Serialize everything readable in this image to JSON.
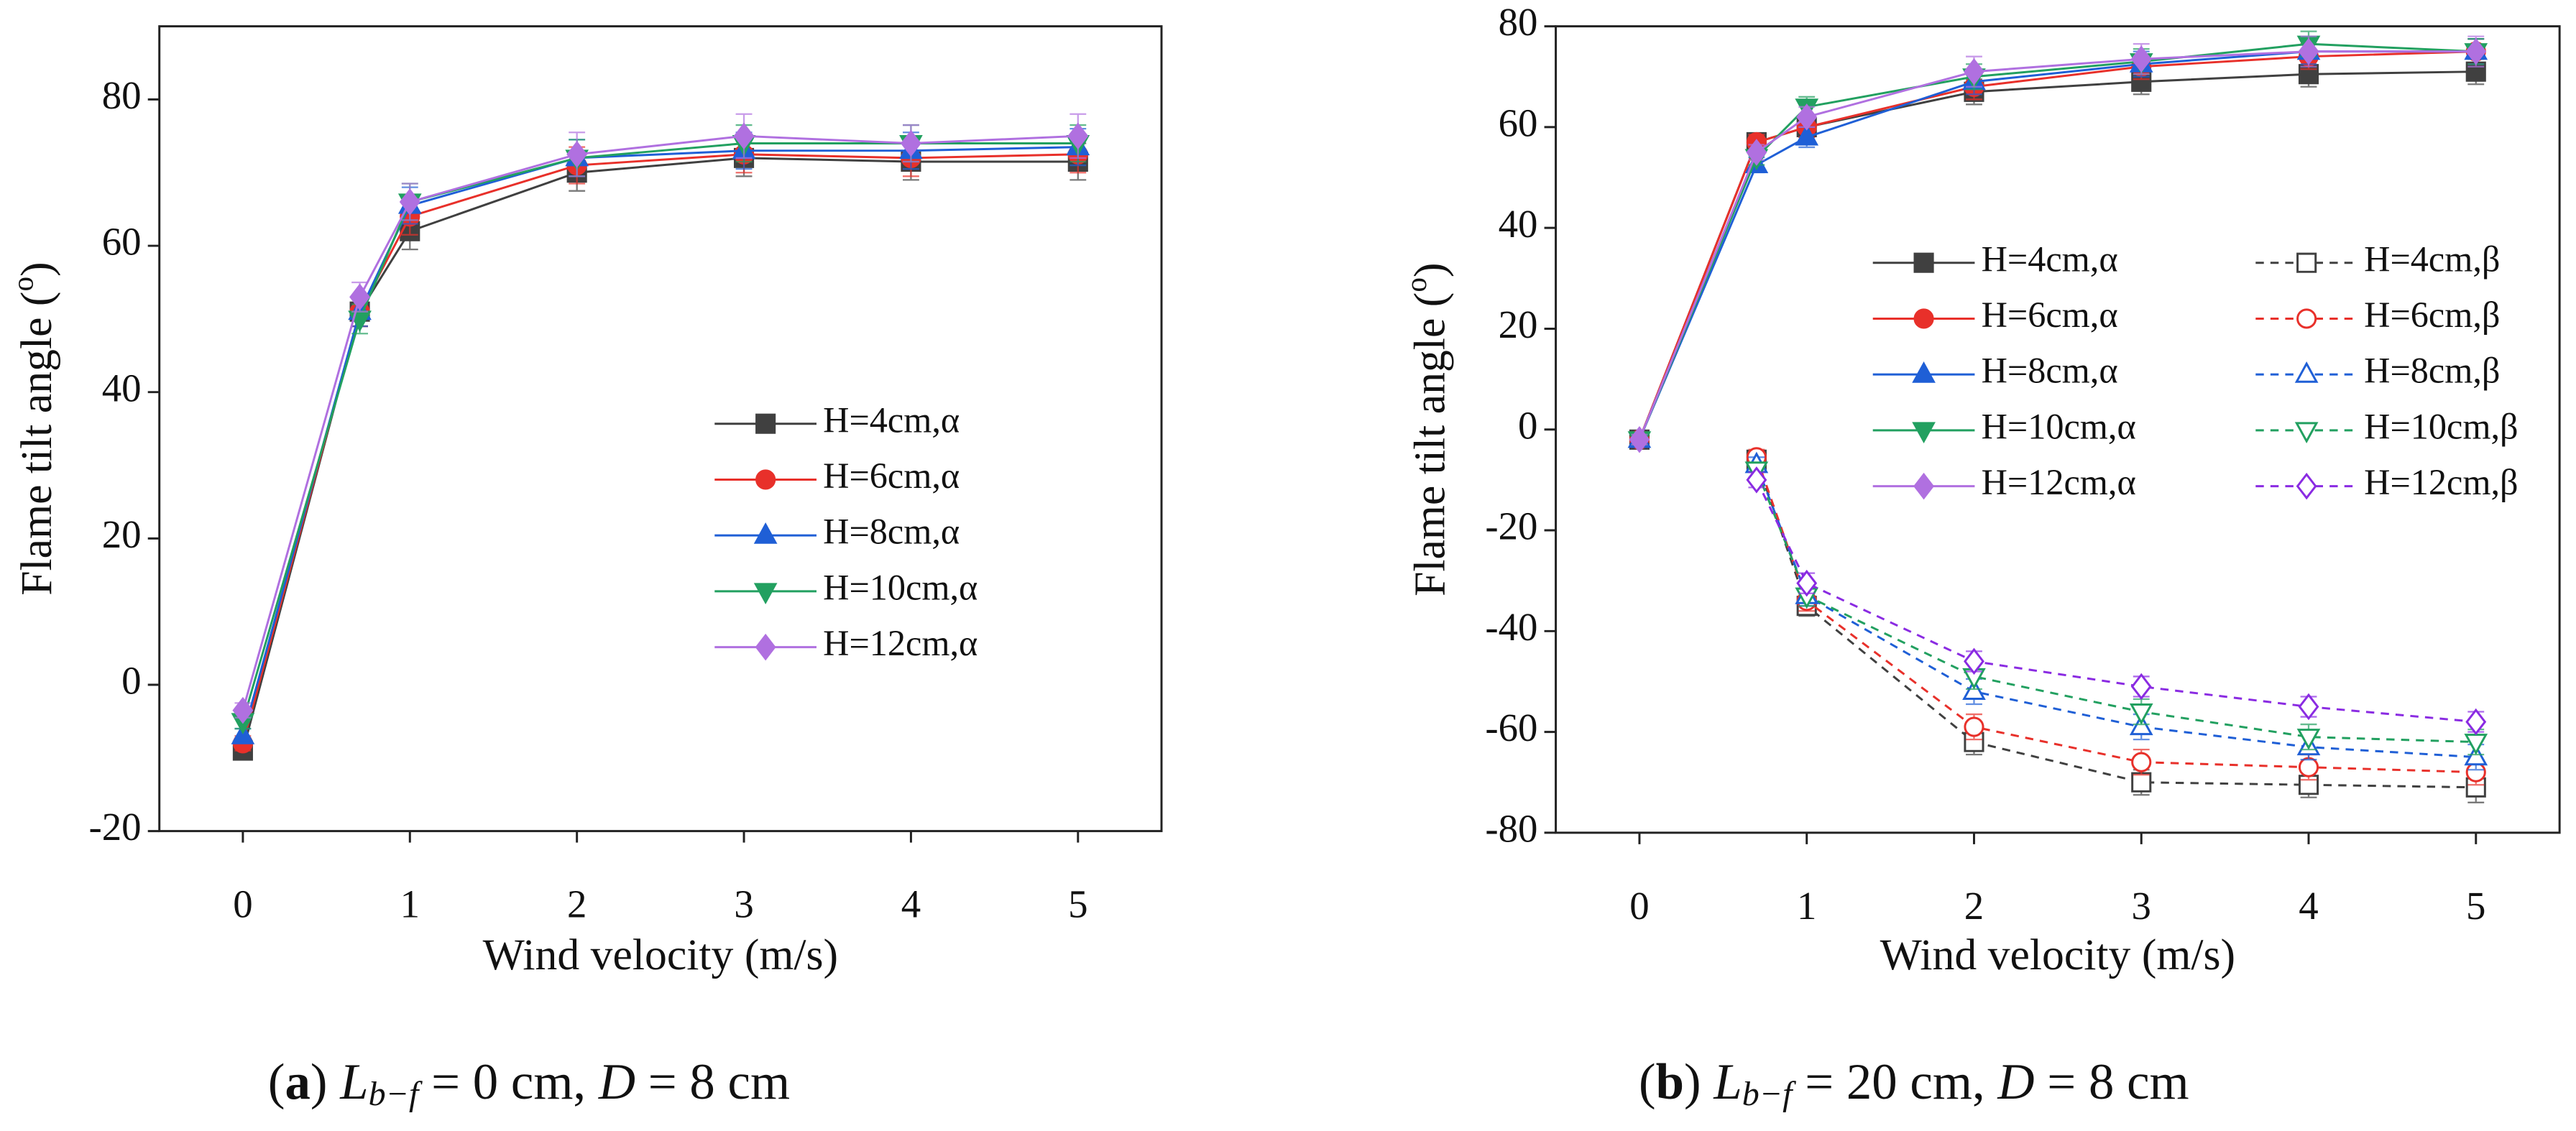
{
  "chart_data": [
    {
      "type": "line",
      "xlabel": "Wind velocity (m/s)",
      "ylabel": {
        "text": "Flame tilt angle (",
        "sup": "o",
        "tail": ")"
      },
      "caption": {
        "label": "a",
        "var": "L",
        "sub": "b−f",
        "rest": " = 0 cm, ",
        "var2": "D",
        "rest2": " = 8 cm"
      },
      "x": [
        0,
        0.7,
        1,
        2,
        3,
        4,
        5
      ],
      "xlim": [
        -0.5,
        5.5
      ],
      "xticks": [
        0,
        1,
        2,
        3,
        4,
        5
      ],
      "ylim": [
        -20,
        90
      ],
      "yticks": [
        -20,
        0,
        20,
        40,
        60,
        80
      ],
      "grid": false,
      "series": [
        {
          "name": "H=4cm,α",
          "color": "#404040",
          "marker": "square",
          "filled": true,
          "dashed": false,
          "values": [
            -9,
            51,
            62,
            70,
            72,
            71.5,
            71.5
          ],
          "errors": [
            1,
            2,
            2.5,
            2.5,
            2.5,
            2.5,
            2.5
          ]
        },
        {
          "name": "H=6cm,α",
          "color": "#e8302a",
          "marker": "circle",
          "filled": true,
          "dashed": false,
          "values": [
            -8,
            51,
            64,
            71,
            72.5,
            72,
            72.5
          ],
          "errors": [
            1,
            2,
            2.5,
            2.5,
            2.5,
            2.5,
            2.5
          ]
        },
        {
          "name": "H=8cm,α",
          "color": "#1f5fd6",
          "marker": "triangle-up",
          "filled": true,
          "dashed": false,
          "values": [
            -7,
            51,
            65.5,
            72,
            73,
            73,
            73.5
          ],
          "errors": [
            1,
            2,
            2.5,
            2.5,
            2.5,
            2.5,
            2.5
          ]
        },
        {
          "name": "H=10cm,α",
          "color": "#22a060",
          "marker": "triangle-down",
          "filled": true,
          "dashed": false,
          "values": [
            -5,
            50,
            66,
            72,
            74,
            74,
            74
          ],
          "errors": [
            1,
            2,
            2.5,
            2.5,
            2.5,
            2.5,
            2.5
          ]
        },
        {
          "name": "H=12cm,α",
          "color": "#b070e0",
          "marker": "diamond",
          "filled": true,
          "dashed": false,
          "values": [
            -3.5,
            53,
            66,
            72.5,
            75,
            74,
            75
          ],
          "errors": [
            1,
            2,
            2.5,
            3,
            3,
            2.5,
            3
          ]
        }
      ]
    },
    {
      "type": "line",
      "xlabel": "Wind velocity (m/s)",
      "ylabel": {
        "text": "Flame tilt angle (",
        "sup": "o",
        "tail": ")"
      },
      "caption": {
        "label": "b",
        "var": "L",
        "sub": "b−f",
        "rest": " = 20 cm, ",
        "var2": "D",
        "rest2": " = 8 cm"
      },
      "x": [
        0,
        0.7,
        1,
        2,
        3,
        4,
        5
      ],
      "xlim": [
        -0.5,
        5.5
      ],
      "xticks": [
        0,
        1,
        2,
        3,
        4,
        5
      ],
      "ylim": [
        -80,
        80
      ],
      "yticks": [
        -80,
        -60,
        -40,
        -20,
        0,
        20,
        40,
        60,
        80
      ],
      "grid": false,
      "series": [
        {
          "name": "H=4cm,α",
          "color": "#404040",
          "marker": "square",
          "filled": true,
          "dashed": false,
          "values": [
            -2,
            57,
            60,
            67,
            69,
            70.5,
            71
          ],
          "errors": [
            1,
            1.5,
            2,
            2.5,
            2.5,
            2.5,
            2.5
          ]
        },
        {
          "name": "H=6cm,α",
          "color": "#e8302a",
          "marker": "circle",
          "filled": true,
          "dashed": false,
          "values": [
            -2,
            57,
            60,
            68,
            72,
            74,
            75
          ],
          "errors": [
            1,
            1.5,
            2,
            2.5,
            2.5,
            2.5,
            2.5
          ]
        },
        {
          "name": "H=8cm,α",
          "color": "#1f5fd6",
          "marker": "triangle-up",
          "filled": true,
          "dashed": false,
          "values": [
            -2,
            52.5,
            58,
            69,
            72.5,
            75,
            75
          ],
          "errors": [
            1,
            1.5,
            2,
            2.5,
            2.5,
            2.5,
            2.5
          ]
        },
        {
          "name": "H=10cm,α",
          "color": "#22a060",
          "marker": "triangle-down",
          "filled": true,
          "dashed": false,
          "values": [
            -2,
            54,
            64,
            70,
            73,
            76.5,
            75
          ],
          "errors": [
            1,
            1.5,
            2,
            2.5,
            2.5,
            2.5,
            2.5
          ]
        },
        {
          "name": "H=12cm,α",
          "color": "#b070e0",
          "marker": "diamond",
          "filled": true,
          "dashed": false,
          "values": [
            -2,
            55,
            62,
            71,
            73.5,
            75,
            75
          ],
          "errors": [
            1,
            1.5,
            2,
            3,
            3,
            3,
            3
          ]
        },
        {
          "name": "H=4cm,β",
          "color": "#404040",
          "marker": "square",
          "filled": false,
          "dashed": true,
          "values": [
            null,
            -6,
            -35,
            -62,
            -70,
            -70.5,
            -71
          ],
          "errors": [
            null,
            1.5,
            2,
            2.5,
            2.5,
            2.5,
            3
          ]
        },
        {
          "name": "H=6cm,β",
          "color": "#e8302a",
          "marker": "circle",
          "filled": false,
          "dashed": true,
          "values": [
            null,
            -5.5,
            -34,
            -59,
            -66,
            -67,
            -68
          ],
          "errors": [
            null,
            1.5,
            2,
            2.5,
            2.5,
            2.5,
            2.5
          ]
        },
        {
          "name": "H=8cm,β",
          "color": "#1f5fd6",
          "marker": "triangle-up",
          "filled": false,
          "dashed": true,
          "values": [
            null,
            -7,
            -33,
            -52,
            -59,
            -63,
            -65
          ],
          "errors": [
            null,
            1.5,
            2,
            2.5,
            2.5,
            2.5,
            2.5
          ]
        },
        {
          "name": "H=10cm,β",
          "color": "#22a060",
          "marker": "triangle-down",
          "filled": false,
          "dashed": true,
          "values": [
            null,
            -8,
            -33,
            -49,
            -56,
            -61,
            -62
          ],
          "errors": [
            null,
            1.5,
            2,
            2.5,
            2.5,
            2.5,
            2.5
          ]
        },
        {
          "name": "H=12cm,β",
          "color": "#8a2be2",
          "marker": "diamond",
          "filled": false,
          "dashed": true,
          "values": [
            null,
            -10,
            -30.5,
            -46,
            -51,
            -55,
            -58
          ],
          "errors": [
            null,
            1.5,
            2,
            2,
            2,
            2,
            2
          ]
        }
      ]
    }
  ]
}
